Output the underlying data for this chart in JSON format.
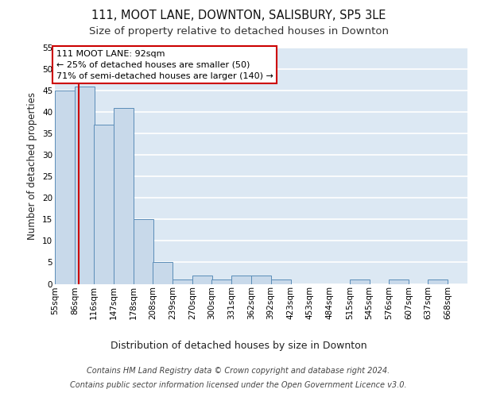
{
  "title1": "111, MOOT LANE, DOWNTON, SALISBURY, SP5 3LE",
  "title2": "Size of property relative to detached houses in Downton",
  "xlabel": "Distribution of detached houses by size in Downton",
  "ylabel": "Number of detached properties",
  "bar_left_edges": [
    55,
    86,
    116,
    147,
    178,
    208,
    239,
    270,
    300,
    331,
    362,
    392,
    423,
    453,
    484,
    515,
    545,
    576,
    607,
    637
  ],
  "bar_heights": [
    45,
    46,
    37,
    41,
    15,
    5,
    1,
    2,
    1,
    2,
    2,
    1,
    0,
    0,
    0,
    1,
    0,
    1,
    0,
    1
  ],
  "bin_width": 31,
  "bar_color": "#c8d9ea",
  "bar_edge_color": "#5b8db8",
  "tick_labels": [
    "55sqm",
    "86sqm",
    "116sqm",
    "147sqm",
    "178sqm",
    "208sqm",
    "239sqm",
    "270sqm",
    "300sqm",
    "331sqm",
    "362sqm",
    "392sqm",
    "423sqm",
    "453sqm",
    "484sqm",
    "515sqm",
    "545sqm",
    "576sqm",
    "607sqm",
    "637sqm",
    "668sqm"
  ],
  "tick_positions": [
    55,
    86,
    116,
    147,
    178,
    208,
    239,
    270,
    300,
    331,
    362,
    392,
    423,
    453,
    484,
    515,
    545,
    576,
    607,
    637,
    668
  ],
  "property_line_x": 92,
  "property_line_color": "#cc0000",
  "annotation_line1": "111 MOOT LANE: 92sqm",
  "annotation_line2": "← 25% of detached houses are smaller (50)",
  "annotation_line3": "71% of semi-detached houses are larger (140) →",
  "annotation_box_color": "#ffffff",
  "annotation_box_edge_color": "#cc0000",
  "ylim": [
    0,
    55
  ],
  "yticks": [
    0,
    5,
    10,
    15,
    20,
    25,
    30,
    35,
    40,
    45,
    50,
    55
  ],
  "bg_color": "#dce8f3",
  "grid_color": "#ffffff",
  "footer_line1": "Contains HM Land Registry data © Crown copyright and database right 2024.",
  "footer_line2": "Contains public sector information licensed under the Open Government Licence v3.0.",
  "title1_fontsize": 10.5,
  "title2_fontsize": 9.5,
  "xlabel_fontsize": 9,
  "ylabel_fontsize": 8.5,
  "tick_fontsize": 7.5,
  "annotation_fontsize": 8,
  "footer_fontsize": 7
}
